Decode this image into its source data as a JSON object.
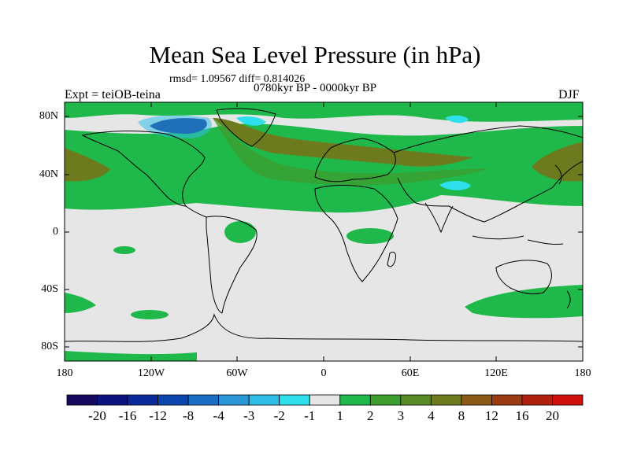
{
  "title": "Mean Sea Level Pressure (in hPa)",
  "stats": "rmsd= 1.09567 diff= 0.814026",
  "period": "0780kyr BP - 0000kyr BP",
  "experiment": "Expt = teiOB-teina",
  "season": "DJF",
  "lat_ticks": [
    "80N",
    "40N",
    "0",
    "40S",
    "80S"
  ],
  "lon_ticks": [
    "180",
    "120W",
    "60W",
    "0",
    "60E",
    "120E",
    "180"
  ],
  "colorbar": {
    "labels": [
      "-20",
      "-16",
      "-12",
      "-8",
      "-4",
      "-3",
      "-2",
      "-1",
      "1",
      "2",
      "3",
      "4",
      "8",
      "12",
      "16",
      "20"
    ],
    "colors": [
      "#150a5e",
      "#0c1280",
      "#0a2a9a",
      "#0b45ae",
      "#1c6ec4",
      "#2a97d6",
      "#2fbde6",
      "#2ee0ee",
      "#e6e6e6",
      "#1fb84a",
      "#3e9e2e",
      "#5a8a26",
      "#6e7a1e",
      "#8a5a16",
      "#9c3a12",
      "#b0200e",
      "#d0100a"
    ]
  },
  "colors": {
    "land_outline": "#000000",
    "neutral": "#e6e6e6",
    "pos_1": "#1fb84a",
    "pos_2": "#3e9e2e",
    "pos_3": "#6e7a1e",
    "neg_1": "#2ee0ee",
    "neg_2": "#2fbde6",
    "neg_3": "#0b45ae",
    "neg_4": "#0c1280"
  }
}
